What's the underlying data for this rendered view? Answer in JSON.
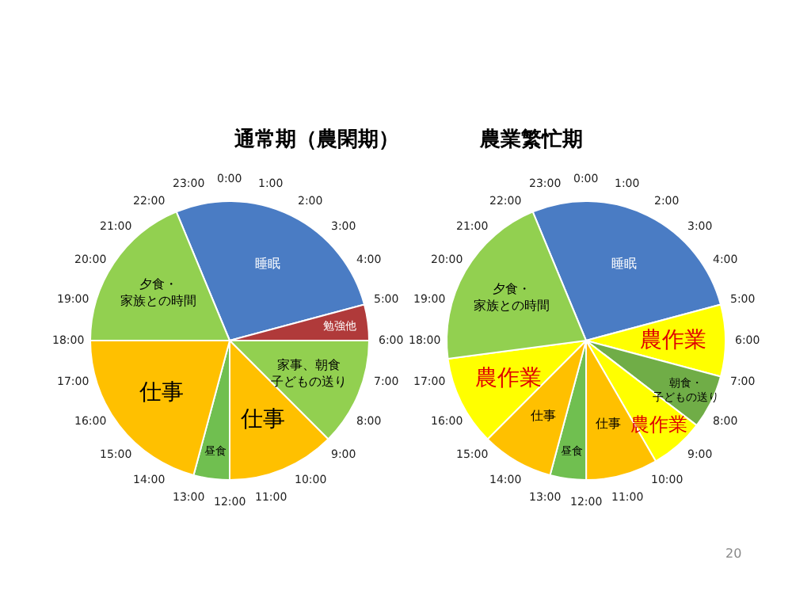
{
  "chart_data": [
    {
      "type": "pie",
      "title": "通常期（農閑期）",
      "categories": [
        "睡眠",
        "勉強他",
        "家事、朝食子どもの送り",
        "仕事",
        "昼食",
        "仕事",
        "夕食・家族との時間"
      ],
      "values": [
        27.08,
        4.17,
        12.5,
        12.5,
        4.17,
        20.83,
        18.75
      ],
      "colors": [
        "#4a7cc4",
        "#b03a3a",
        "#92d050",
        "#ffc000",
        "#70bf50",
        "#ffc000",
        "#92d050"
      ],
      "annotations": [
        "0:00",
        "1:00",
        "2:00",
        "3:00",
        "4:00",
        "5:00",
        "6:00",
        "7:00",
        "8:00",
        "9:00",
        "10:00",
        "11:00",
        "12:00",
        "13:00",
        "14:00",
        "15:00",
        "16:00",
        "17:00",
        "18:00",
        "19:00",
        "20:00",
        "21:00",
        "22:00",
        "23:00"
      ]
    },
    {
      "type": "pie",
      "title": "農業繁忙期",
      "categories": [
        "睡眠",
        "農作業",
        "朝食・子どもの送り",
        "農作業",
        "仕事",
        "昼食",
        "仕事",
        "農作業",
        "夕食・家族との時間"
      ],
      "values": [
        27.08,
        8.33,
        6.25,
        6.25,
        8.33,
        4.17,
        8.33,
        10.42,
        20.84
      ],
      "colors": [
        "#4a7cc4",
        "#ffff00",
        "#70ad47",
        "#ffff00",
        "#ffc000",
        "#70bf50",
        "#ffc000",
        "#ffff00",
        "#92d050"
      ],
      "annotations": [
        "0:00",
        "1:00",
        "2:00",
        "3:00",
        "4:00",
        "5:00",
        "6:00",
        "7:00",
        "8:00",
        "9:00",
        "10:00",
        "11:00",
        "12:00",
        "13:00",
        "14:00",
        "15:00",
        "16:00",
        "17:00",
        "18:00",
        "19:00",
        "20:00",
        "21:00",
        "22:00",
        "23:00",
        "20"
      ]
    }
  ]
}
